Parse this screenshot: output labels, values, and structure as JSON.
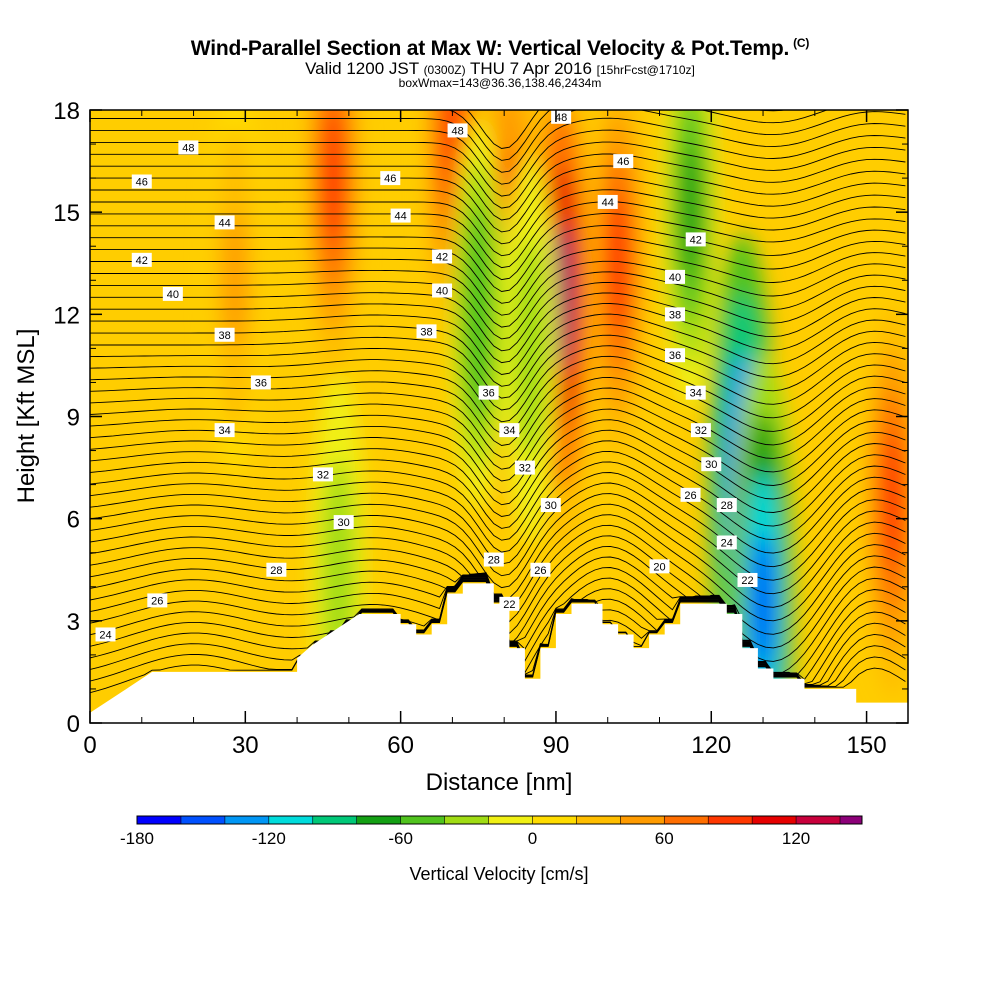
{
  "header": {
    "title": "Wind-Parallel Section at Max W: Vertical Velocity & Pot.Temp.",
    "title_mark": "(C)",
    "subtitle_a": "Valid 1200 JST",
    "subtitle_b": "(0300Z)",
    "subtitle_c": "THU 7 Apr 2016",
    "subtitle_d": "[15hrFcst@1710z]",
    "subtitle2": "boxWmax=143@36.36,138.46,2434m"
  },
  "chart_data": {
    "type": "heatmap",
    "title": "Wind-Parallel Section at Max W: Vertical Velocity & Pot.Temp.",
    "xlabel": "Distance [nm]",
    "ylabel": "Height [Kft MSL]",
    "xlim": [
      0,
      158
    ],
    "ylim": [
      0,
      18
    ],
    "xticks": [
      0,
      30,
      60,
      90,
      120,
      150
    ],
    "yticks": [
      0,
      3,
      6,
      9,
      12,
      15,
      18
    ],
    "colorbar": {
      "label": "Vertical Velocity [cm/s]",
      "min": -180,
      "max": 150,
      "step": 20,
      "tick_labels": [
        -180,
        -120,
        -60,
        0,
        60,
        120
      ],
      "colors": [
        "#0000ff",
        "#0050ff",
        "#0096f5",
        "#00dcdc",
        "#00c878",
        "#14a014",
        "#50c31e",
        "#a0dc14",
        "#f0f014",
        "#ffdc00",
        "#ffbe00",
        "#ff9b00",
        "#ff6e00",
        "#ff3700",
        "#e60000",
        "#c8003c",
        "#8c0078",
        "#5a009b"
      ]
    },
    "vertical_velocity_peaks": [
      {
        "distance": 91,
        "height": 12.5,
        "w": 150
      },
      {
        "distance": 81,
        "height": 13.0,
        "w": 110
      },
      {
        "distance": 102,
        "height": 13.5,
        "w": 90
      },
      {
        "distance": 70,
        "height": 17.0,
        "w": 90
      },
      {
        "distance": 47,
        "height": 16.0,
        "w": 80
      },
      {
        "distance": 155,
        "height": 6.5,
        "w": 90
      },
      {
        "distance": 126,
        "height": 7.0,
        "w": -180
      },
      {
        "distance": 130,
        "height": 3.5,
        "w": -160
      },
      {
        "distance": 116,
        "height": 15.0,
        "w": -70
      },
      {
        "distance": 75,
        "height": 12.0,
        "w": -60
      },
      {
        "distance": 85,
        "height": 11.0,
        "w": -40
      },
      {
        "distance": 48,
        "height": 4.5,
        "w": -30
      },
      {
        "distance": 28,
        "height": 13.0,
        "w": 40
      }
    ],
    "terrain_kft": [
      [
        0,
        0.3
      ],
      [
        3,
        0.6
      ],
      [
        6,
        0.9
      ],
      [
        9,
        1.2
      ],
      [
        12,
        1.5
      ],
      [
        40,
        1.5
      ],
      [
        40,
        1.9
      ],
      [
        43,
        2.3
      ],
      [
        46,
        2.6
      ],
      [
        49,
        2.9
      ],
      [
        52,
        3.2
      ],
      [
        60,
        3.2
      ],
      [
        60,
        2.9
      ],
      [
        63,
        2.9
      ],
      [
        63,
        2.6
      ],
      [
        66,
        2.6
      ],
      [
        66,
        2.9
      ],
      [
        69,
        2.9
      ],
      [
        69,
        3.8
      ],
      [
        72,
        3.8
      ],
      [
        72,
        4.1
      ],
      [
        78,
        4.1
      ],
      [
        78,
        3.5
      ],
      [
        81,
        3.5
      ],
      [
        81,
        2.2
      ],
      [
        84,
        2.2
      ],
      [
        84,
        1.3
      ],
      [
        87,
        1.3
      ],
      [
        87,
        2.2
      ],
      [
        90,
        2.2
      ],
      [
        90,
        3.2
      ],
      [
        93,
        3.2
      ],
      [
        93,
        3.5
      ],
      [
        99,
        3.5
      ],
      [
        99,
        2.9
      ],
      [
        102,
        2.9
      ],
      [
        102,
        2.6
      ],
      [
        105,
        2.6
      ],
      [
        105,
        2.2
      ],
      [
        108,
        2.2
      ],
      [
        108,
        2.6
      ],
      [
        111,
        2.6
      ],
      [
        111,
        2.9
      ],
      [
        114,
        2.9
      ],
      [
        114,
        3.5
      ],
      [
        123,
        3.5
      ],
      [
        123,
        3.2
      ],
      [
        126,
        3.2
      ],
      [
        126,
        2.2
      ],
      [
        129,
        2.2
      ],
      [
        129,
        1.6
      ],
      [
        132,
        1.6
      ],
      [
        132,
        1.3
      ],
      [
        138,
        1.3
      ],
      [
        138,
        1.0
      ],
      [
        148,
        1.0
      ],
      [
        148,
        0.6
      ],
      [
        158,
        0.6
      ]
    ],
    "potential_temperature_labels": [
      {
        "value": "48",
        "distance": 19,
        "height": 16.9
      },
      {
        "value": "46",
        "distance": 10,
        "height": 15.9
      },
      {
        "value": "44",
        "distance": 26,
        "height": 14.7
      },
      {
        "value": "42",
        "distance": 10,
        "height": 13.6
      },
      {
        "value": "40",
        "distance": 16,
        "height": 12.6
      },
      {
        "value": "38",
        "distance": 26,
        "height": 11.4
      },
      {
        "value": "36",
        "distance": 33,
        "height": 10.0
      },
      {
        "value": "34",
        "distance": 26,
        "height": 8.6
      },
      {
        "value": "32",
        "distance": 45,
        "height": 7.3
      },
      {
        "value": "30",
        "distance": 49,
        "height": 5.9
      },
      {
        "value": "28",
        "distance": 36,
        "height": 4.5
      },
      {
        "value": "26",
        "distance": 13,
        "height": 3.6
      },
      {
        "value": "24",
        "distance": 3,
        "height": 2.6
      },
      {
        "value": "46",
        "distance": 58,
        "height": 16.0
      },
      {
        "value": "44",
        "distance": 60,
        "height": 14.9
      },
      {
        "value": "42",
        "distance": 68,
        "height": 13.7
      },
      {
        "value": "40",
        "distance": 68,
        "height": 12.7
      },
      {
        "value": "38",
        "distance": 65,
        "height": 11.5
      },
      {
        "value": "48",
        "distance": 71,
        "height": 17.4
      },
      {
        "value": "36",
        "distance": 77,
        "height": 9.7
      },
      {
        "value": "34",
        "distance": 81,
        "height": 8.6
      },
      {
        "value": "32",
        "distance": 84,
        "height": 7.5
      },
      {
        "value": "30",
        "distance": 89,
        "height": 6.4
      },
      {
        "value": "28",
        "distance": 78,
        "height": 4.8
      },
      {
        "value": "26",
        "distance": 87,
        "height": 4.5
      },
      {
        "value": "22",
        "distance": 81,
        "height": 3.5
      },
      {
        "value": "48",
        "distance": 91,
        "height": 17.8
      },
      {
        "value": "46",
        "distance": 103,
        "height": 16.5
      },
      {
        "value": "44",
        "distance": 100,
        "height": 15.3
      },
      {
        "value": "42",
        "distance": 117,
        "height": 14.2
      },
      {
        "value": "40",
        "distance": 113,
        "height": 13.1
      },
      {
        "value": "38",
        "distance": 113,
        "height": 12.0
      },
      {
        "value": "36",
        "distance": 113,
        "height": 10.8
      },
      {
        "value": "34",
        "distance": 117,
        "height": 9.7
      },
      {
        "value": "32",
        "distance": 118,
        "height": 8.6
      },
      {
        "value": "30",
        "distance": 120,
        "height": 7.6
      },
      {
        "value": "28",
        "distance": 123,
        "height": 6.4
      },
      {
        "value": "26",
        "distance": 116,
        "height": 6.7
      },
      {
        "value": "24",
        "distance": 123,
        "height": 5.3
      },
      {
        "value": "22",
        "distance": 127,
        "height": 4.2
      },
      {
        "value": "20",
        "distance": 110,
        "height": 4.6
      }
    ]
  }
}
